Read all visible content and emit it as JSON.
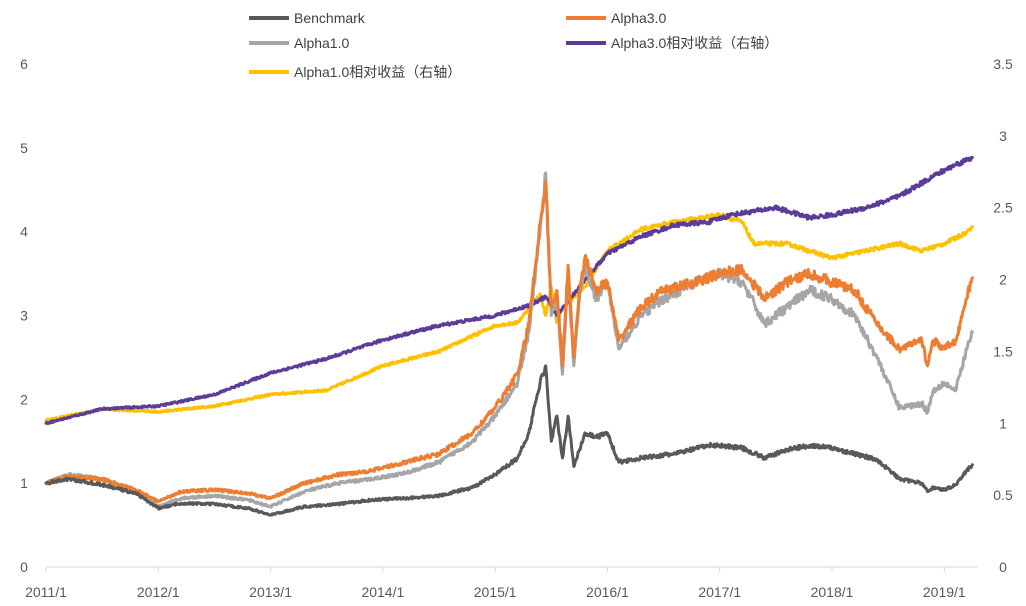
{
  "chart_data": {
    "type": "line",
    "title": "",
    "xlabel": "",
    "ylabel": "",
    "ylim": [
      0,
      6
    ],
    "y2lim": [
      0,
      3.5
    ],
    "yticks": [
      "0",
      "1",
      "2",
      "3",
      "4",
      "5",
      "6"
    ],
    "y2ticks": [
      "0",
      "0.5",
      "1",
      "1.5",
      "2",
      "2.5",
      "3",
      "3.5"
    ],
    "xlim": [
      2011.0,
      2019.3
    ],
    "xticks": [
      {
        "value": 2011.0,
        "label": "2011/1"
      },
      {
        "value": 2012.0,
        "label": "2012/1"
      },
      {
        "value": 2013.0,
        "label": "2013/1"
      },
      {
        "value": 2014.0,
        "label": "2014/1"
      },
      {
        "value": 2015.0,
        "label": "2015/1"
      },
      {
        "value": 2016.0,
        "label": "2016/1"
      },
      {
        "value": 2017.0,
        "label": "2017/1"
      },
      {
        "value": 2018.0,
        "label": "2018/1"
      },
      {
        "value": 2019.0,
        "label": "2019/1"
      }
    ],
    "series": [
      {
        "name": "Alpha1.0相对收益（右轴）",
        "axis": "right",
        "color": "#FFC000",
        "x": [
          2011.0,
          2011.5,
          2012.0,
          2012.5,
          2013.0,
          2013.5,
          2014.0,
          2014.5,
          2015.0,
          2015.2,
          2015.4,
          2015.45,
          2015.5,
          2015.55,
          2015.6,
          2015.8,
          2016.0,
          2016.3,
          2016.6,
          2017.0,
          2017.2,
          2017.3,
          2017.6,
          2017.8,
          2018.0,
          2018.3,
          2018.6,
          2018.8,
          2019.0,
          2019.2,
          2019.25
        ],
        "y": [
          1.02,
          1.1,
          1.08,
          1.12,
          1.2,
          1.23,
          1.4,
          1.5,
          1.68,
          1.7,
          1.9,
          1.75,
          1.95,
          1.7,
          1.8,
          1.95,
          2.2,
          2.35,
          2.4,
          2.45,
          2.4,
          2.25,
          2.25,
          2.2,
          2.15,
          2.2,
          2.25,
          2.2,
          2.25,
          2.33,
          2.37
        ]
      },
      {
        "name": "Alpha3.0相对收益（右轴）",
        "axis": "right",
        "color": "#5B3C98",
        "x": [
          2011.0,
          2011.5,
          2012.0,
          2012.5,
          2013.0,
          2013.5,
          2014.0,
          2014.5,
          2015.0,
          2015.3,
          2015.45,
          2015.55,
          2015.65,
          2015.8,
          2016.0,
          2016.3,
          2016.6,
          2016.9,
          2017.1,
          2017.5,
          2017.8,
          2018.0,
          2018.3,
          2018.6,
          2018.9,
          2019.1,
          2019.25
        ],
        "y": [
          1.0,
          1.1,
          1.12,
          1.2,
          1.35,
          1.45,
          1.58,
          1.68,
          1.75,
          1.82,
          1.88,
          1.75,
          1.85,
          2.0,
          2.18,
          2.3,
          2.38,
          2.4,
          2.45,
          2.5,
          2.43,
          2.45,
          2.5,
          2.58,
          2.72,
          2.8,
          2.85
        ]
      },
      {
        "name": "Alpha1.0",
        "axis": "left",
        "color": "#A6A6A6",
        "x": [
          2011.0,
          2011.2,
          2011.5,
          2011.8,
          2012.0,
          2012.2,
          2012.5,
          2012.8,
          2013.0,
          2013.3,
          2013.6,
          2013.9,
          2014.2,
          2014.5,
          2014.8,
          2015.0,
          2015.2,
          2015.3,
          2015.4,
          2015.45,
          2015.5,
          2015.55,
          2015.6,
          2015.65,
          2015.7,
          2015.75,
          2015.8,
          2015.9,
          2016.0,
          2016.1,
          2016.3,
          2016.5,
          2016.8,
          2017.0,
          2017.2,
          2017.4,
          2017.6,
          2017.8,
          2018.0,
          2018.2,
          2018.4,
          2018.6,
          2018.8,
          2018.85,
          2018.9,
          2019.0,
          2019.1,
          2019.2,
          2019.25
        ],
        "y": [
          1.0,
          1.1,
          1.05,
          0.9,
          0.72,
          0.82,
          0.85,
          0.8,
          0.72,
          0.9,
          1.0,
          1.05,
          1.12,
          1.25,
          1.5,
          1.8,
          2.2,
          2.8,
          4.0,
          4.7,
          3.0,
          3.2,
          2.3,
          3.5,
          2.4,
          3.2,
          3.6,
          3.2,
          3.4,
          2.6,
          3.0,
          3.2,
          3.4,
          3.5,
          3.4,
          2.9,
          3.1,
          3.3,
          3.2,
          3.0,
          2.5,
          1.9,
          1.95,
          1.85,
          2.1,
          2.2,
          2.1,
          2.6,
          2.8
        ]
      },
      {
        "name": "Alpha3.0",
        "axis": "left",
        "color": "#ED7D31",
        "x": [
          2011.0,
          2011.2,
          2011.5,
          2011.8,
          2012.0,
          2012.2,
          2012.5,
          2012.8,
          2013.0,
          2013.3,
          2013.6,
          2013.9,
          2014.2,
          2014.5,
          2014.8,
          2015.0,
          2015.2,
          2015.3,
          2015.4,
          2015.45,
          2015.5,
          2015.55,
          2015.6,
          2015.65,
          2015.7,
          2015.75,
          2015.8,
          2015.9,
          2016.0,
          2016.1,
          2016.3,
          2016.5,
          2016.8,
          2017.0,
          2017.2,
          2017.4,
          2017.6,
          2017.8,
          2018.0,
          2018.2,
          2018.4,
          2018.6,
          2018.8,
          2018.85,
          2018.9,
          2019.0,
          2019.1,
          2019.2,
          2019.25
        ],
        "y": [
          1.0,
          1.08,
          1.05,
          0.92,
          0.78,
          0.9,
          0.92,
          0.88,
          0.82,
          1.0,
          1.1,
          1.15,
          1.25,
          1.35,
          1.6,
          1.9,
          2.3,
          2.9,
          4.1,
          4.6,
          3.1,
          3.3,
          2.4,
          3.6,
          2.5,
          3.3,
          3.7,
          3.3,
          3.4,
          2.7,
          3.1,
          3.3,
          3.4,
          3.5,
          3.55,
          3.2,
          3.4,
          3.5,
          3.4,
          3.3,
          2.9,
          2.6,
          2.7,
          2.4,
          2.7,
          2.6,
          2.7,
          3.2,
          3.45
        ]
      },
      {
        "name": "Benchmark",
        "axis": "left",
        "color": "#595959",
        "x": [
          2011.0,
          2011.2,
          2011.5,
          2011.8,
          2012.0,
          2012.2,
          2012.5,
          2012.8,
          2013.0,
          2013.3,
          2013.6,
          2013.9,
          2014.2,
          2014.5,
          2014.8,
          2015.0,
          2015.2,
          2015.3,
          2015.4,
          2015.45,
          2015.5,
          2015.55,
          2015.6,
          2015.65,
          2015.7,
          2015.75,
          2015.8,
          2015.9,
          2016.0,
          2016.1,
          2016.3,
          2016.6,
          2016.9,
          2017.0,
          2017.2,
          2017.4,
          2017.6,
          2017.8,
          2018.0,
          2018.2,
          2018.4,
          2018.6,
          2018.8,
          2018.85,
          2018.9,
          2019.0,
          2019.1,
          2019.2,
          2019.25
        ],
        "y": [
          1.0,
          1.05,
          0.98,
          0.88,
          0.7,
          0.76,
          0.75,
          0.7,
          0.62,
          0.72,
          0.75,
          0.8,
          0.82,
          0.85,
          0.95,
          1.1,
          1.3,
          1.6,
          2.2,
          2.4,
          1.5,
          1.8,
          1.3,
          1.8,
          1.2,
          1.4,
          1.6,
          1.55,
          1.6,
          1.25,
          1.3,
          1.35,
          1.45,
          1.45,
          1.42,
          1.3,
          1.4,
          1.45,
          1.42,
          1.35,
          1.28,
          1.05,
          1.0,
          0.9,
          0.95,
          0.92,
          0.98,
          1.15,
          1.22
        ]
      }
    ],
    "legend": [
      {
        "name": "Benchmark",
        "color": "#595959"
      },
      {
        "name": "Alpha3.0",
        "color": "#ED7D31"
      },
      {
        "name": "Alpha1.0",
        "color": "#A6A6A6"
      },
      {
        "name": "Alpha3.0相对收益（右轴）",
        "color": "#5B3C98"
      },
      {
        "name": "Alpha1.0相对收益（右轴）",
        "color": "#FFC000"
      }
    ]
  }
}
